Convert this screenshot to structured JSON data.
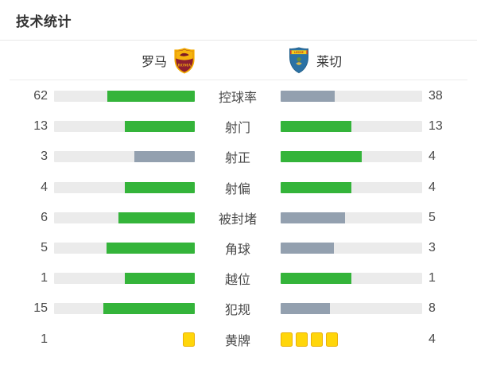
{
  "title": "技术统计",
  "teams": {
    "home": {
      "name": "罗马"
    },
    "away": {
      "name": "莱切"
    }
  },
  "colors": {
    "green": "#34b43a",
    "gray": "#93a0af",
    "track": "#ebebeb",
    "yellow_card_fill": "#ffd60a",
    "yellow_card_border": "#e9b006"
  },
  "stats": [
    {
      "type": "bar",
      "label": "控球率",
      "home": 62,
      "away": 38,
      "home_pct": 62,
      "away_pct": 38,
      "home_color": "green",
      "away_color": "gray"
    },
    {
      "type": "bar",
      "label": "射门",
      "home": 13,
      "away": 13,
      "home_pct": 50,
      "away_pct": 50,
      "home_color": "green",
      "away_color": "green"
    },
    {
      "type": "bar",
      "label": "射正",
      "home": 3,
      "away": 4,
      "home_pct": 42.9,
      "away_pct": 57.1,
      "home_color": "gray",
      "away_color": "green"
    },
    {
      "type": "bar",
      "label": "射偏",
      "home": 4,
      "away": 4,
      "home_pct": 50,
      "away_pct": 50,
      "home_color": "green",
      "away_color": "green"
    },
    {
      "type": "bar",
      "label": "被封堵",
      "home": 6,
      "away": 5,
      "home_pct": 54.5,
      "away_pct": 45.5,
      "home_color": "green",
      "away_color": "gray"
    },
    {
      "type": "bar",
      "label": "角球",
      "home": 5,
      "away": 3,
      "home_pct": 62.5,
      "away_pct": 37.5,
      "home_color": "green",
      "away_color": "gray"
    },
    {
      "type": "bar",
      "label": "越位",
      "home": 1,
      "away": 1,
      "home_pct": 50,
      "away_pct": 50,
      "home_color": "green",
      "away_color": "green"
    },
    {
      "type": "bar",
      "label": "犯规",
      "home": 15,
      "away": 8,
      "home_pct": 65.2,
      "away_pct": 34.8,
      "home_color": "green",
      "away_color": "gray"
    },
    {
      "type": "cards",
      "label": "黄牌",
      "home": 1,
      "away": 4
    }
  ],
  "chart_data": {
    "type": "bar",
    "orientation": "horizontal-paired",
    "title": "技术统计",
    "categories": [
      "控球率",
      "射门",
      "射正",
      "射偏",
      "被封堵",
      "角球",
      "越位",
      "犯规",
      "黄牌"
    ],
    "series": [
      {
        "name": "罗马",
        "values": [
          62,
          13,
          3,
          4,
          6,
          5,
          1,
          15,
          1
        ]
      },
      {
        "name": "莱切",
        "values": [
          38,
          13,
          4,
          4,
          5,
          3,
          1,
          8,
          4
        ]
      }
    ],
    "legend_position": "top",
    "grid": false,
    "notes": "Bar length = value / (home+away); higher value green (#34b43a), lower gray (#93a0af); ties both green; 黄牌 row rendered as yellow card glyphs"
  }
}
